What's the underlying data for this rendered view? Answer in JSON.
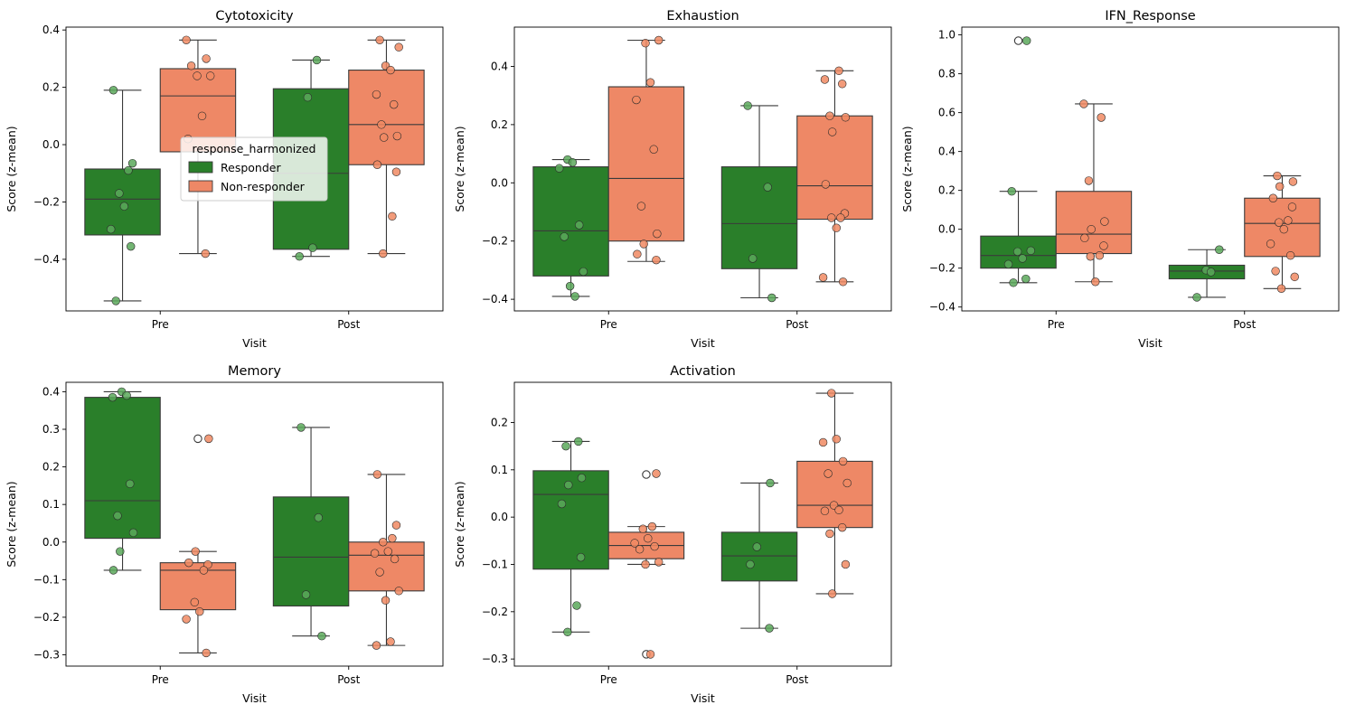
{
  "legend": {
    "title": "response_harmonized",
    "entries": [
      {
        "name": "Responder",
        "box_color": "#2a7f2a",
        "point_color": "#5aa85a"
      },
      {
        "name": "Non-responder",
        "box_color": "#ee8866",
        "point_color": "#f08a63"
      }
    ]
  },
  "chart_data": [
    {
      "type": "box",
      "title": "Cytotoxicity",
      "xlabel": "Visit",
      "ylabel": "Score (z-mean)",
      "categories": [
        "Pre",
        "Post"
      ],
      "ylim": [
        -0.58,
        0.41
      ],
      "yticks": [
        -0.4,
        -0.2,
        0.0,
        0.2,
        0.4
      ],
      "ytick_labels": [
        "−0.4",
        "−0.2",
        "0.0",
        "0.2",
        "0.4"
      ],
      "legend": "inside-upper-center",
      "boxes": [
        {
          "category": "Pre",
          "series": "Responder",
          "q1": -0.315,
          "median": -0.19,
          "q3": -0.085,
          "whisker_low": -0.545,
          "whisker_high": 0.19,
          "outliers": []
        },
        {
          "category": "Pre",
          "series": "Non-responder",
          "q1": -0.025,
          "median": 0.17,
          "q3": 0.265,
          "whisker_low": -0.38,
          "whisker_high": 0.365,
          "outliers": []
        },
        {
          "category": "Post",
          "series": "Responder",
          "q1": -0.365,
          "median": -0.1,
          "q3": 0.195,
          "whisker_low": -0.39,
          "whisker_high": 0.295,
          "outliers": []
        },
        {
          "category": "Post",
          "series": "Non-responder",
          "q1": -0.07,
          "median": 0.07,
          "q3": 0.26,
          "whisker_low": -0.38,
          "whisker_high": 0.365,
          "outliers": []
        }
      ],
      "points": [
        {
          "category": "Pre",
          "series": "Responder",
          "values": [
            0.19,
            -0.065,
            -0.09,
            -0.17,
            -0.215,
            -0.295,
            -0.355,
            -0.545
          ]
        },
        {
          "category": "Pre",
          "series": "Non-responder",
          "values": [
            0.365,
            0.3,
            0.275,
            0.24,
            0.24,
            0.1,
            0.02,
            -0.38
          ]
        },
        {
          "category": "Post",
          "series": "Responder",
          "values": [
            0.295,
            0.165,
            -0.36,
            -0.39
          ]
        },
        {
          "category": "Post",
          "series": "Non-responder",
          "values": [
            0.365,
            0.34,
            0.275,
            0.26,
            0.175,
            0.14,
            0.07,
            0.03,
            0.025,
            -0.07,
            -0.095,
            -0.25,
            -0.38
          ]
        }
      ]
    },
    {
      "type": "box",
      "title": "Exhaustion",
      "xlabel": "Visit",
      "ylabel": "Score (z-mean)",
      "categories": [
        "Pre",
        "Post"
      ],
      "ylim": [
        -0.44,
        0.535
      ],
      "yticks": [
        -0.4,
        -0.2,
        0.0,
        0.2,
        0.4
      ],
      "ytick_labels": [
        "−0.4",
        "−0.2",
        "0.0",
        "0.2",
        "0.4"
      ],
      "boxes": [
        {
          "category": "Pre",
          "series": "Responder",
          "q1": -0.32,
          "median": -0.165,
          "q3": 0.055,
          "whisker_low": -0.39,
          "whisker_high": 0.08,
          "outliers": []
        },
        {
          "category": "Pre",
          "series": "Non-responder",
          "q1": -0.2,
          "median": 0.015,
          "q3": 0.33,
          "whisker_low": -0.27,
          "whisker_high": 0.49,
          "outliers": []
        },
        {
          "category": "Post",
          "series": "Responder",
          "q1": -0.295,
          "median": -0.14,
          "q3": 0.055,
          "whisker_low": -0.395,
          "whisker_high": 0.265,
          "outliers": []
        },
        {
          "category": "Post",
          "series": "Non-responder",
          "q1": -0.125,
          "median": -0.01,
          "q3": 0.23,
          "whisker_low": -0.34,
          "whisker_high": 0.385,
          "outliers": []
        }
      ],
      "points": [
        {
          "category": "Pre",
          "series": "Responder",
          "values": [
            0.08,
            0.07,
            0.05,
            -0.145,
            -0.185,
            -0.305,
            -0.355,
            -0.39
          ]
        },
        {
          "category": "Pre",
          "series": "Non-responder",
          "values": [
            0.49,
            0.48,
            0.345,
            0.285,
            0.115,
            -0.08,
            -0.175,
            -0.21,
            -0.245,
            -0.265
          ]
        },
        {
          "category": "Post",
          "series": "Responder",
          "values": [
            0.265,
            -0.015,
            -0.26,
            -0.395
          ]
        },
        {
          "category": "Post",
          "series": "Non-responder",
          "values": [
            0.385,
            0.355,
            0.34,
            0.23,
            0.225,
            0.175,
            -0.005,
            -0.105,
            -0.12,
            -0.12,
            -0.155,
            -0.325,
            -0.34
          ]
        }
      ]
    },
    {
      "type": "box",
      "title": "IFN_Response",
      "xlabel": "Visit",
      "ylabel": "Score (z-mean)",
      "categories": [
        "Pre",
        "Post"
      ],
      "ylim": [
        -0.42,
        1.04
      ],
      "yticks": [
        -0.4,
        -0.2,
        0.0,
        0.2,
        0.4,
        0.6,
        0.8,
        1.0
      ],
      "ytick_labels": [
        "−0.4",
        "−0.2",
        "0.0",
        "0.2",
        "0.4",
        "0.6",
        "0.8",
        "1.0"
      ],
      "boxes": [
        {
          "category": "Pre",
          "series": "Responder",
          "q1": -0.2,
          "median": -0.135,
          "q3": -0.035,
          "whisker_low": -0.275,
          "whisker_high": 0.195,
          "outliers": [
            0.97
          ]
        },
        {
          "category": "Pre",
          "series": "Non-responder",
          "q1": -0.125,
          "median": -0.025,
          "q3": 0.195,
          "whisker_low": -0.27,
          "whisker_high": 0.645,
          "outliers": []
        },
        {
          "category": "Post",
          "series": "Responder",
          "q1": -0.255,
          "median": -0.215,
          "q3": -0.185,
          "whisker_low": -0.35,
          "whisker_high": -0.105,
          "outliers": []
        },
        {
          "category": "Post",
          "series": "Non-responder",
          "q1": -0.14,
          "median": 0.03,
          "q3": 0.16,
          "whisker_low": -0.305,
          "whisker_high": 0.275,
          "outliers": []
        }
      ],
      "points": [
        {
          "category": "Pre",
          "series": "Responder",
          "values": [
            0.97,
            0.195,
            -0.11,
            -0.115,
            -0.15,
            -0.18,
            -0.255,
            -0.275
          ]
        },
        {
          "category": "Pre",
          "series": "Non-responder",
          "values": [
            0.645,
            0.575,
            0.25,
            0.04,
            0.0,
            -0.045,
            -0.085,
            -0.135,
            -0.14,
            -0.27
          ]
        },
        {
          "category": "Post",
          "series": "Responder",
          "values": [
            -0.105,
            -0.21,
            -0.22,
            -0.35
          ]
        },
        {
          "category": "Post",
          "series": "Non-responder",
          "values": [
            0.275,
            0.245,
            0.22,
            0.16,
            0.115,
            0.045,
            0.035,
            0.0,
            -0.075,
            -0.135,
            -0.215,
            -0.245,
            -0.305
          ]
        }
      ]
    },
    {
      "type": "box",
      "title": "Memory",
      "xlabel": "Visit",
      "ylabel": "Score (z-mean)",
      "categories": [
        "Pre",
        "Post"
      ],
      "ylim": [
        -0.33,
        0.425
      ],
      "yticks": [
        -0.3,
        -0.2,
        -0.1,
        0.0,
        0.1,
        0.2,
        0.3,
        0.4
      ],
      "ytick_labels": [
        "−0.3",
        "−0.2",
        "−0.1",
        "0.0",
        "0.1",
        "0.2",
        "0.3",
        "0.4"
      ],
      "boxes": [
        {
          "category": "Pre",
          "series": "Responder",
          "q1": 0.01,
          "median": 0.11,
          "q3": 0.385,
          "whisker_low": -0.075,
          "whisker_high": 0.4,
          "outliers": []
        },
        {
          "category": "Pre",
          "series": "Non-responder",
          "q1": -0.18,
          "median": -0.075,
          "q3": -0.055,
          "whisker_low": -0.295,
          "whisker_high": -0.025,
          "outliers": [
            0.275
          ]
        },
        {
          "category": "Post",
          "series": "Responder",
          "q1": -0.17,
          "median": -0.04,
          "q3": 0.12,
          "whisker_low": -0.25,
          "whisker_high": 0.305,
          "outliers": []
        },
        {
          "category": "Post",
          "series": "Non-responder",
          "q1": -0.13,
          "median": -0.035,
          "q3": 0.0,
          "whisker_low": -0.275,
          "whisker_high": 0.18,
          "outliers": []
        }
      ],
      "points": [
        {
          "category": "Pre",
          "series": "Responder",
          "values": [
            0.4,
            0.39,
            0.385,
            0.155,
            0.07,
            0.025,
            -0.025,
            -0.075
          ]
        },
        {
          "category": "Pre",
          "series": "Non-responder",
          "values": [
            0.275,
            -0.025,
            -0.055,
            -0.06,
            -0.075,
            -0.16,
            -0.185,
            -0.205,
            -0.295
          ]
        },
        {
          "category": "Post",
          "series": "Responder",
          "values": [
            0.305,
            0.065,
            -0.14,
            -0.25
          ]
        },
        {
          "category": "Post",
          "series": "Non-responder",
          "values": [
            0.18,
            0.045,
            0.01,
            0.0,
            -0.025,
            -0.03,
            -0.045,
            -0.08,
            -0.13,
            -0.155,
            -0.265,
            -0.275
          ]
        }
      ]
    },
    {
      "type": "box",
      "title": "Activation",
      "xlabel": "Visit",
      "ylabel": "Score (z-mean)",
      "categories": [
        "Pre",
        "Post"
      ],
      "ylim": [
        -0.315,
        0.285
      ],
      "yticks": [
        -0.3,
        -0.2,
        -0.1,
        0.0,
        0.1,
        0.2
      ],
      "ytick_labels": [
        "−0.3",
        "−0.2",
        "−0.1",
        "0.0",
        "0.1",
        "0.2"
      ],
      "boxes": [
        {
          "category": "Pre",
          "series": "Responder",
          "q1": -0.11,
          "median": 0.048,
          "q3": 0.098,
          "whisker_low": -0.243,
          "whisker_high": 0.16,
          "outliers": []
        },
        {
          "category": "Pre",
          "series": "Non-responder",
          "q1": -0.088,
          "median": -0.06,
          "q3": -0.032,
          "whisker_low": -0.1,
          "whisker_high": -0.02,
          "outliers": [
            0.09,
            -0.29
          ]
        },
        {
          "category": "Post",
          "series": "Responder",
          "q1": -0.135,
          "median": -0.082,
          "q3": -0.032,
          "whisker_low": -0.235,
          "whisker_high": 0.072,
          "outliers": []
        },
        {
          "category": "Post",
          "series": "Non-responder",
          "q1": -0.022,
          "median": 0.025,
          "q3": 0.118,
          "whisker_low": -0.162,
          "whisker_high": 0.262,
          "outliers": []
        }
      ],
      "points": [
        {
          "category": "Pre",
          "series": "Responder",
          "values": [
            0.16,
            0.15,
            0.083,
            0.068,
            0.028,
            -0.085,
            -0.187,
            -0.243
          ]
        },
        {
          "category": "Pre",
          "series": "Non-responder",
          "values": [
            0.092,
            -0.02,
            -0.025,
            -0.045,
            -0.055,
            -0.062,
            -0.068,
            -0.095,
            -0.1,
            -0.29
          ]
        },
        {
          "category": "Post",
          "series": "Responder",
          "values": [
            0.072,
            -0.063,
            -0.1,
            -0.235
          ]
        },
        {
          "category": "Post",
          "series": "Non-responder",
          "values": [
            0.262,
            0.165,
            0.158,
            0.118,
            0.092,
            0.072,
            0.025,
            0.015,
            0.013,
            -0.022,
            -0.035,
            -0.1,
            -0.162
          ]
        }
      ]
    }
  ]
}
